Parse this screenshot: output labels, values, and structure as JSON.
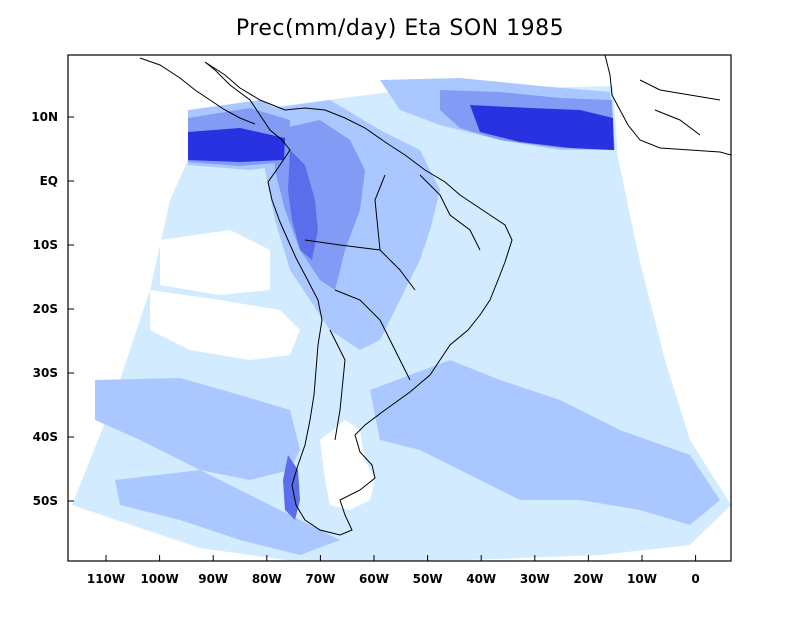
{
  "title": "Prec(mm/day) Eta SON 1985",
  "map": {
    "variable": "Prec",
    "units": "mm/day",
    "model": "Eta",
    "season": "SON",
    "year": 1985,
    "lon_labels": [
      "110W",
      "100W",
      "90W",
      "80W",
      "70W",
      "60W",
      "50W",
      "40W",
      "30W",
      "20W",
      "10W",
      "0"
    ],
    "lat_labels": [
      "10N",
      "EQ",
      "10S",
      "20S",
      "30S",
      "40S",
      "50S"
    ],
    "shading_colors": [
      "#d2ebff",
      "#aac8ff",
      "#829bf5",
      "#5a6eeb",
      "#2832e1"
    ]
  }
}
